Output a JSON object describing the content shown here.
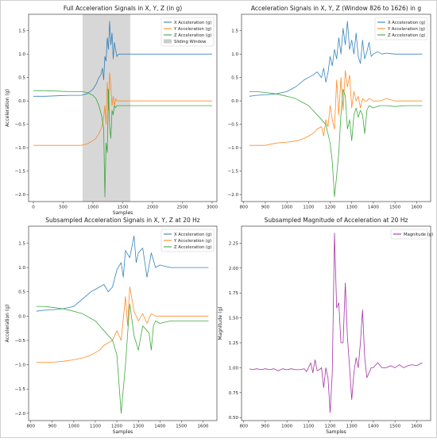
{
  "colors": {
    "x": "#1f77b4",
    "y": "#ff7f0e",
    "z": "#2ca02c",
    "magnitude": "#9b1c9b",
    "window": "#bdbdbd"
  },
  "chart_data": [
    {
      "type": "line",
      "title": "Full Acceleration Signals in X, Y, Z (in g)",
      "xlabel": "Samples",
      "ylabel": "Acceleration (g)",
      "xlim": [
        -80,
        3080
      ],
      "ylim": [
        -2.15,
        1.85
      ],
      "xticks": [
        0,
        500,
        1000,
        1500,
        2000,
        2500,
        3000
      ],
      "yticks": [
        1.5,
        1.0,
        0.5,
        0.0,
        -0.5,
        -1.0,
        -1.5,
        -2.0
      ],
      "legend_position": "top-right",
      "shaded_region": {
        "name": "Sliding Window",
        "x": [
          826,
          1626
        ]
      },
      "series": [
        {
          "name": "X Acceleration (g)",
          "color_key": "x",
          "x": [
            0,
            200,
            400,
            600,
            800,
            900,
            1000,
            1050,
            1100,
            1130,
            1160,
            1180,
            1200,
            1220,
            1240,
            1260,
            1280,
            1300,
            1320,
            1340,
            1360,
            1380,
            1400,
            1430,
            1460,
            1500,
            1550,
            1600,
            1700,
            1800,
            2000,
            2200,
            2400,
            2600,
            2800,
            3000
          ],
          "y": [
            0.1,
            0.1,
            0.11,
            0.12,
            0.12,
            0.15,
            0.25,
            0.35,
            0.5,
            0.55,
            0.7,
            0.45,
            0.95,
            0.85,
            1.35,
            1.1,
            1.7,
            1.2,
            1.45,
            0.9,
            1.25,
            1.1,
            0.95,
            1.0,
            1.0,
            1.0,
            1.0,
            1.0,
            1.0,
            1.0,
            1.0,
            1.0,
            1.0,
            1.0,
            1.0,
            1.0
          ]
        },
        {
          "name": "Y Acceleration (g)",
          "color_key": "y",
          "x": [
            0,
            200,
            400,
            600,
            800,
            900,
            1000,
            1050,
            1100,
            1150,
            1180,
            1200,
            1220,
            1240,
            1260,
            1280,
            1300,
            1320,
            1340,
            1360,
            1380,
            1400,
            1430,
            1460,
            1500,
            1550,
            1600,
            1700,
            1800,
            2000,
            2200,
            2400,
            2600,
            2800,
            3000
          ],
          "y": [
            -0.95,
            -0.95,
            -0.95,
            -0.95,
            -0.95,
            -0.92,
            -0.85,
            -0.8,
            -0.7,
            -0.55,
            -0.35,
            -0.1,
            -0.5,
            0.4,
            -0.2,
            0.6,
            0.3,
            -0.1,
            0.1,
            -0.1,
            0.05,
            0.0,
            0.0,
            0.0,
            0.0,
            0.0,
            0.0,
            0.0,
            0.0,
            0.0,
            0.0,
            0.0,
            0.0,
            0.0,
            0.0
          ]
        },
        {
          "name": "Z Acceleration (g)",
          "color_key": "z",
          "x": [
            0,
            200,
            400,
            600,
            800,
            900,
            1000,
            1050,
            1100,
            1150,
            1180,
            1200,
            1220,
            1240,
            1260,
            1280,
            1300,
            1320,
            1340,
            1360,
            1380,
            1400,
            1430,
            1460,
            1500,
            1550,
            1600,
            1700,
            1800,
            2000,
            2200,
            2400,
            2600,
            2800,
            3000
          ],
          "y": [
            0.22,
            0.22,
            0.21,
            0.2,
            0.2,
            0.18,
            0.12,
            0.05,
            -0.1,
            -0.35,
            -0.6,
            -2.05,
            -0.9,
            -1.1,
            0.25,
            -0.55,
            -0.8,
            -0.2,
            -0.3,
            -0.1,
            -0.15,
            -0.1,
            -0.1,
            -0.1,
            -0.1,
            -0.1,
            -0.1,
            -0.1,
            -0.1,
            -0.1,
            -0.1,
            -0.1,
            -0.1,
            -0.1,
            -0.1
          ]
        }
      ]
    },
    {
      "type": "line",
      "title": "Acceleration Signals in X, Y, Z (Window 826 to 1626) in g",
      "xlabel": "",
      "ylabel": "",
      "xlim": [
        790,
        1665
      ],
      "ylim": [
        -2.15,
        1.85
      ],
      "xticks": [
        800,
        900,
        1000,
        1100,
        1200,
        1300,
        1400,
        1500,
        1600
      ],
      "yticks": [
        1.5,
        1.0,
        0.5,
        0.0,
        -0.5,
        -1.0,
        -1.5,
        -2.0
      ],
      "legend_position": "top-right",
      "series": [
        {
          "name": "X Acceleration (g)",
          "color_key": "x",
          "x": [
            826,
            860,
            900,
            950,
            1000,
            1040,
            1080,
            1100,
            1120,
            1140,
            1160,
            1170,
            1180,
            1190,
            1200,
            1210,
            1220,
            1230,
            1240,
            1250,
            1260,
            1270,
            1280,
            1290,
            1300,
            1310,
            1320,
            1330,
            1340,
            1350,
            1360,
            1370,
            1380,
            1390,
            1400,
            1420,
            1440,
            1460,
            1500,
            1550,
            1600,
            1626
          ],
          "y": [
            0.1,
            0.12,
            0.13,
            0.15,
            0.2,
            0.3,
            0.45,
            0.5,
            0.55,
            0.62,
            0.5,
            0.7,
            0.4,
            0.6,
            0.95,
            0.75,
            1.1,
            0.9,
            1.35,
            1.0,
            1.55,
            1.2,
            1.7,
            1.1,
            1.3,
            1.0,
            1.45,
            0.95,
            0.8,
            1.3,
            0.9,
            1.05,
            1.25,
            0.95,
            1.0,
            1.05,
            1.0,
            1.02,
            1.0,
            1.0,
            1.0,
            1.0
          ]
        },
        {
          "name": "Y Acceleration (g)",
          "color_key": "y",
          "x": [
            826,
            860,
            900,
            950,
            1000,
            1050,
            1080,
            1100,
            1120,
            1140,
            1160,
            1170,
            1180,
            1190,
            1200,
            1210,
            1220,
            1230,
            1240,
            1250,
            1260,
            1270,
            1280,
            1290,
            1300,
            1310,
            1320,
            1330,
            1340,
            1350,
            1360,
            1370,
            1380,
            1400,
            1430,
            1460,
            1500,
            1550,
            1600,
            1626
          ],
          "y": [
            -0.95,
            -0.95,
            -0.95,
            -0.9,
            -0.88,
            -0.85,
            -0.8,
            -0.75,
            -0.7,
            -0.6,
            -0.55,
            -0.75,
            -0.4,
            -0.55,
            -0.1,
            -0.4,
            -0.6,
            0.45,
            -0.3,
            0.5,
            -0.2,
            0.65,
            0.3,
            0.55,
            -0.15,
            0.2,
            0.0,
            0.1,
            -0.15,
            0.05,
            0.0,
            0.0,
            0.05,
            0.0,
            0.0,
            0.05,
            0.0,
            0.0,
            0.0,
            0.0
          ]
        },
        {
          "name": "Z Acceleration (g)",
          "color_key": "z",
          "x": [
            826,
            860,
            900,
            950,
            1000,
            1040,
            1080,
            1100,
            1120,
            1140,
            1160,
            1180,
            1200,
            1210,
            1220,
            1230,
            1240,
            1250,
            1260,
            1270,
            1280,
            1290,
            1300,
            1310,
            1320,
            1330,
            1340,
            1350,
            1360,
            1370,
            1380,
            1400,
            1430,
            1460,
            1500,
            1550,
            1600,
            1626
          ],
          "y": [
            0.2,
            0.2,
            0.18,
            0.15,
            0.1,
            0.05,
            -0.05,
            -0.1,
            -0.2,
            -0.3,
            -0.4,
            -0.5,
            -0.9,
            -1.3,
            -2.05,
            -1.6,
            -1.1,
            -0.3,
            0.25,
            0.1,
            -0.6,
            -0.4,
            -0.85,
            -0.3,
            -0.15,
            -0.35,
            -0.2,
            -0.3,
            -0.7,
            -0.2,
            -0.1,
            -0.15,
            -0.1,
            -0.1,
            -0.12,
            -0.1,
            -0.1,
            -0.1
          ]
        }
      ]
    },
    {
      "type": "line",
      "title": "Subsampled Acceleration Signals in X, Y, Z at 20 Hz",
      "xlabel": "Samples",
      "ylabel": "Acceleration (g)",
      "xlim": [
        790,
        1665
      ],
      "ylim": [
        -2.15,
        1.85
      ],
      "xticks": [
        800,
        900,
        1000,
        1100,
        1200,
        1300,
        1400,
        1500,
        1600
      ],
      "yticks": [
        1.5,
        1.0,
        0.5,
        0.0,
        -0.5,
        -1.0,
        -1.5,
        -2.0
      ],
      "legend_position": "top-right",
      "series": [
        {
          "name": "X Acceleration (g)",
          "color_key": "x",
          "x": [
            826,
            860,
            900,
            950,
            1000,
            1040,
            1080,
            1100,
            1120,
            1140,
            1160,
            1180,
            1200,
            1220,
            1230,
            1240,
            1260,
            1280,
            1290,
            1300,
            1320,
            1340,
            1360,
            1380,
            1400,
            1450,
            1500,
            1550,
            1600,
            1626
          ],
          "y": [
            0.1,
            0.12,
            0.13,
            0.15,
            0.2,
            0.35,
            0.5,
            0.55,
            0.6,
            0.65,
            0.5,
            0.6,
            0.95,
            1.1,
            0.8,
            1.35,
            1.2,
            1.65,
            1.1,
            1.3,
            1.4,
            0.8,
            1.3,
            1.0,
            1.05,
            1.0,
            1.0,
            1.0,
            1.0,
            1.0
          ]
        },
        {
          "name": "Y Acceleration (g)",
          "color_key": "y",
          "x": [
            826,
            860,
            900,
            950,
            1000,
            1050,
            1080,
            1100,
            1120,
            1140,
            1160,
            1180,
            1200,
            1220,
            1240,
            1250,
            1260,
            1280,
            1300,
            1320,
            1340,
            1360,
            1380,
            1400,
            1450,
            1500,
            1550,
            1600,
            1626
          ],
          "y": [
            -0.95,
            -0.95,
            -0.95,
            -0.93,
            -0.9,
            -0.85,
            -0.8,
            -0.75,
            -0.7,
            -0.6,
            -0.55,
            -0.5,
            -0.3,
            -0.5,
            0.4,
            -0.2,
            0.6,
            0.1,
            -0.1,
            0.05,
            -0.15,
            0.05,
            0.0,
            0.0,
            0.0,
            0.0,
            0.0,
            0.0,
            0.0
          ]
        },
        {
          "name": "Z Acceleration (g)",
          "color_key": "z",
          "x": [
            826,
            860,
            900,
            950,
            1000,
            1040,
            1080,
            1100,
            1120,
            1140,
            1160,
            1180,
            1200,
            1220,
            1240,
            1260,
            1280,
            1300,
            1320,
            1340,
            1350,
            1360,
            1370,
            1380,
            1400,
            1450,
            1500,
            1550,
            1600,
            1626
          ],
          "y": [
            0.2,
            0.2,
            0.18,
            0.15,
            0.1,
            0.05,
            -0.05,
            -0.1,
            -0.2,
            -0.3,
            -0.4,
            -0.5,
            -0.8,
            -2.0,
            -1.0,
            0.25,
            -0.4,
            -0.7,
            -0.2,
            -0.3,
            -0.35,
            -0.7,
            -0.2,
            -0.1,
            -0.15,
            -0.1,
            -0.1,
            -0.1,
            -0.1,
            -0.1
          ]
        }
      ]
    },
    {
      "type": "line",
      "title": "Subsampled Magnitude of Acceleration at 20 Hz",
      "xlabel": "Samples",
      "ylabel": "Magnitude (g)",
      "xlim": [
        790,
        1665
      ],
      "ylim": [
        0.47,
        2.42
      ],
      "xticks": [
        800,
        900,
        1000,
        1100,
        1200,
        1300,
        1400,
        1500,
        1600
      ],
      "yticks": [
        2.25,
        2.0,
        1.75,
        1.5,
        1.25,
        1.0,
        0.75,
        0.5
      ],
      "legend_position": "top-right",
      "series": [
        {
          "name": "Magnitude (g)",
          "color_key": "magnitude",
          "x": [
            826,
            840,
            860,
            880,
            900,
            920,
            940,
            960,
            980,
            1000,
            1020,
            1040,
            1060,
            1080,
            1090,
            1100,
            1110,
            1120,
            1130,
            1140,
            1150,
            1160,
            1170,
            1180,
            1190,
            1200,
            1210,
            1220,
            1230,
            1240,
            1250,
            1260,
            1270,
            1280,
            1290,
            1300,
            1310,
            1320,
            1330,
            1340,
            1350,
            1360,
            1370,
            1380,
            1390,
            1400,
            1420,
            1440,
            1460,
            1480,
            1500,
            1520,
            1540,
            1560,
            1580,
            1600,
            1626
          ],
          "y": [
            0.99,
            0.98,
            0.99,
            0.98,
            0.99,
            0.98,
            0.99,
            0.97,
            0.99,
            0.98,
            0.99,
            0.98,
            0.98,
            0.99,
            0.96,
            1.0,
            1.05,
            0.95,
            1.08,
            0.97,
            0.98,
            1.0,
            0.8,
            1.0,
            0.9,
            0.55,
            0.95,
            2.35,
            1.6,
            1.65,
            1.25,
            1.25,
            1.85,
            1.3,
            1.0,
            0.68,
            0.95,
            1.1,
            1.0,
            1.25,
            1.58,
            1.1,
            0.9,
            0.95,
            1.0,
            1.0,
            1.05,
            1.0,
            1.0,
            1.02,
            1.0,
            1.03,
            1.0,
            1.02,
            1.03,
            1.02,
            1.05
          ]
        }
      ]
    }
  ]
}
